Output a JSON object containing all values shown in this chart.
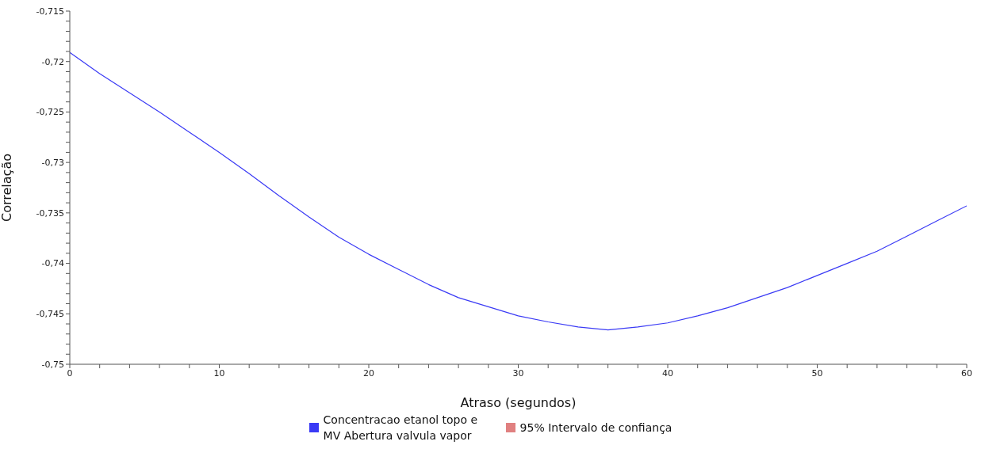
{
  "chart_data": {
    "type": "line",
    "xlabel": "Atraso (segundos)",
    "ylabel": "Correlação",
    "x": [
      0,
      2,
      4,
      6,
      8,
      10,
      12,
      14,
      16,
      18,
      20,
      22,
      24,
      26,
      28,
      30,
      32,
      34,
      36,
      38,
      40,
      42,
      44,
      46,
      48,
      50,
      52,
      54,
      56,
      58,
      60
    ],
    "series": [
      {
        "name": "Concentracao etanol topo e MV Abertura valvula vapor",
        "color": "#3a3af5",
        "values": [
          -0.7191,
          -0.7212,
          -0.7231,
          -0.725,
          -0.727,
          -0.729,
          -0.7311,
          -0.7333,
          -0.7354,
          -0.7374,
          -0.7391,
          -0.7406,
          -0.7421,
          -0.7434,
          -0.7443,
          -0.7452,
          -0.7458,
          -0.7463,
          -0.7466,
          -0.7463,
          -0.7459,
          -0.7452,
          -0.7444,
          -0.7434,
          -0.7424,
          -0.7412,
          -0.74,
          -0.7388,
          -0.7373,
          -0.7358,
          -0.7343
        ]
      },
      {
        "name": "95% Intervalo de confiança",
        "color": "#e08080",
        "values": [
          null,
          null,
          null,
          null,
          null,
          null,
          null,
          null,
          null,
          null,
          null,
          null,
          null,
          null,
          null,
          null,
          null,
          null,
          null,
          null,
          null,
          null,
          null,
          null,
          null,
          null,
          null,
          null,
          null,
          null,
          null
        ]
      }
    ],
    "xlim": [
      0,
      60
    ],
    "xticks": [
      0,
      {
        "value": 2,
        "label": null
      },
      {
        "value": 4,
        "label": null
      },
      {
        "value": 6,
        "label": null
      },
      {
        "value": 8,
        "label": null
      },
      10,
      {
        "value": 12,
        "label": null
      },
      {
        "value": 14,
        "label": null
      },
      {
        "value": 16,
        "label": null
      },
      {
        "value": 18,
        "label": null
      },
      20,
      {
        "value": 22,
        "label": null
      },
      {
        "value": 24,
        "label": null
      },
      {
        "value": 26,
        "label": null
      },
      {
        "value": 28,
        "label": null
      },
      30,
      {
        "value": 32,
        "label": null
      },
      {
        "value": 34,
        "label": null
      },
      {
        "value": 36,
        "label": null
      },
      {
        "value": 38,
        "label": null
      },
      40,
      {
        "value": 42,
        "label": null
      },
      {
        "value": 44,
        "label": null
      },
      {
        "value": 46,
        "label": null
      },
      {
        "value": 48,
        "label": null
      },
      50,
      {
        "value": 52,
        "label": null
      },
      {
        "value": 54,
        "label": null
      },
      {
        "value": 56,
        "label": null
      },
      {
        "value": 58,
        "label": null
      },
      60
    ],
    "ylim": [
      -0.75,
      -0.715
    ],
    "yticks": [
      {
        "value": -0.75,
        "label": "-0,75"
      },
      {
        "value": -0.749,
        "label": null
      },
      {
        "value": -0.748,
        "label": null
      },
      {
        "value": -0.747,
        "label": null
      },
      {
        "value": -0.746,
        "label": null
      },
      {
        "value": -0.745,
        "label": "-0,745"
      },
      {
        "value": -0.744,
        "label": null
      },
      {
        "value": -0.743,
        "label": null
      },
      {
        "value": -0.742,
        "label": null
      },
      {
        "value": -0.741,
        "label": null
      },
      {
        "value": -0.74,
        "label": "-0,74"
      },
      {
        "value": -0.739,
        "label": null
      },
      {
        "value": -0.738,
        "label": null
      },
      {
        "value": -0.737,
        "label": null
      },
      {
        "value": -0.736,
        "label": null
      },
      {
        "value": -0.735,
        "label": "-0,735"
      },
      {
        "value": -0.734,
        "label": null
      },
      {
        "value": -0.733,
        "label": null
      },
      {
        "value": -0.732,
        "label": null
      },
      {
        "value": -0.731,
        "label": null
      },
      {
        "value": -0.73,
        "label": "-0,73"
      },
      {
        "value": -0.729,
        "label": null
      },
      {
        "value": -0.728,
        "label": null
      },
      {
        "value": -0.727,
        "label": null
      },
      {
        "value": -0.726,
        "label": null
      },
      {
        "value": -0.725,
        "label": "-0,725"
      },
      {
        "value": -0.724,
        "label": null
      },
      {
        "value": -0.723,
        "label": null
      },
      {
        "value": -0.722,
        "label": null
      },
      {
        "value": -0.721,
        "label": null
      },
      {
        "value": -0.72,
        "label": "-0,72"
      },
      {
        "value": -0.719,
        "label": null
      },
      {
        "value": -0.718,
        "label": null
      },
      {
        "value": -0.717,
        "label": null
      },
      {
        "value": -0.716,
        "label": null
      },
      {
        "value": -0.715,
        "label": "-0,715"
      }
    ],
    "grid": false,
    "legend": "bottom",
    "marker": "none",
    "line_style": "solid"
  }
}
